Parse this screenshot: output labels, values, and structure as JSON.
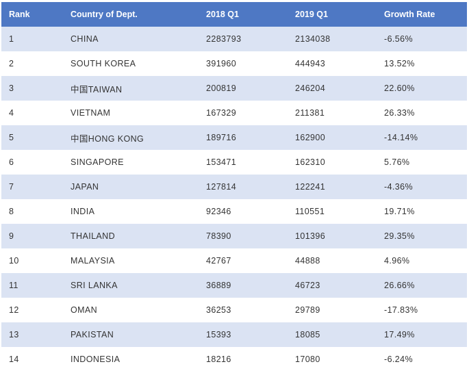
{
  "table": {
    "headers": {
      "rank": "Rank",
      "country": "Country of Dept.",
      "q1_2018": "2018 Q1",
      "q1_2019": "2019 Q1",
      "growth": "Growth Rate"
    },
    "rows": [
      {
        "rank": "1",
        "country": "CHINA",
        "q1_2018": "2283793",
        "q1_2019": "2134038",
        "growth": "-6.56%"
      },
      {
        "rank": "2",
        "country": "SOUTH KOREA",
        "q1_2018": "391960",
        "q1_2019": "444943",
        "growth": "13.52%"
      },
      {
        "rank": "3",
        "country": "中国TAIWAN",
        "q1_2018": "200819",
        "q1_2019": "246204",
        "growth": "22.60%"
      },
      {
        "rank": "4",
        "country": "VIETNAM",
        "q1_2018": "167329",
        "q1_2019": "211381",
        "growth": "26.33%"
      },
      {
        "rank": "5",
        "country": "中国HONG KONG",
        "q1_2018": "189716",
        "q1_2019": "162900",
        "growth": "-14.14%"
      },
      {
        "rank": "6",
        "country": "SINGAPORE",
        "q1_2018": "153471",
        "q1_2019": "162310",
        "growth": "5.76%"
      },
      {
        "rank": "7",
        "country": "JAPAN",
        "q1_2018": "127814",
        "q1_2019": "122241",
        "growth": "-4.36%"
      },
      {
        "rank": "8",
        "country": "INDIA",
        "q1_2018": "92346",
        "q1_2019": "110551",
        "growth": "19.71%"
      },
      {
        "rank": "9",
        "country": "THAILAND",
        "q1_2018": "78390",
        "q1_2019": "101396",
        "growth": "29.35%"
      },
      {
        "rank": "10",
        "country": "MALAYSIA",
        "q1_2018": "42767",
        "q1_2019": "44888",
        "growth": "4.96%"
      },
      {
        "rank": "11",
        "country": "SRI LANKA",
        "q1_2018": "36889",
        "q1_2019": "46723",
        "growth": "26.66%"
      },
      {
        "rank": "12",
        "country": "OMAN",
        "q1_2018": "36253",
        "q1_2019": "29789",
        "growth": "-17.83%"
      },
      {
        "rank": "13",
        "country": "PAKISTAN",
        "q1_2018": "15393",
        "q1_2019": "18085",
        "growth": "17.49%"
      },
      {
        "rank": "14",
        "country": "INDONESIA",
        "q1_2018": "18216",
        "q1_2019": "17080",
        "growth": "-6.24%"
      }
    ]
  },
  "colors": {
    "header_bg": "#4e78c4",
    "header_text": "#ffffff",
    "alt_row_bg": "#dbe3f3",
    "row_text": "#333333"
  }
}
